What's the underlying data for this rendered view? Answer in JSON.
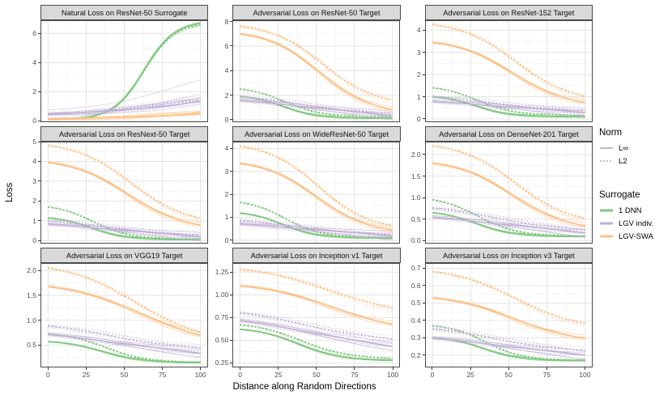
{
  "figure": {
    "y_title": "Loss",
    "x_title": "Distance along Random Directions"
  },
  "colors": {
    "green": "#7FC97F",
    "purple": "#BEAED4",
    "orange": "#FDC086",
    "norm_key": "#888888",
    "grid_major": "#E4E4E4",
    "grid_minor": "#F2F2F2",
    "panel_border": "#4a4a4a",
    "strip_bg": "#D9D9D9",
    "axis_text": "#4D4D4D"
  },
  "legend": {
    "norm": {
      "title": "Norm",
      "items": [
        {
          "label": "L∞",
          "dashed": false
        },
        {
          "label": "L2",
          "dashed": true
        }
      ]
    },
    "surrogate": {
      "title": "Surrogate",
      "items": [
        {
          "label": "1 DNN",
          "color": "green"
        },
        {
          "label": "LGV indiv.",
          "color": "purple"
        },
        {
          "label": "LGV-SWA",
          "color": "orange"
        }
      ]
    }
  },
  "chart_data": {
    "type": "line",
    "x_label": "Distance along Random Directions",
    "y_label": "Loss",
    "x_range": [
      0,
      100
    ],
    "x_ticks": [
      {
        "label": "0",
        "v": 0
      },
      {
        "label": "25",
        "v": 25
      },
      {
        "label": "50",
        "v": 50
      },
      {
        "label": "75",
        "v": 75
      },
      {
        "label": "100",
        "v": 100
      }
    ],
    "panels": [
      {
        "title": "Natural Loss on ResNet-50 Surrogate",
        "ylim": [
          -0.1,
          6.9
        ],
        "yticks": [
          {
            "label": "0",
            "v": 0
          },
          {
            "label": "2",
            "v": 2
          },
          {
            "label": "4",
            "v": 4
          },
          {
            "label": "6",
            "v": 6
          }
        ],
        "series": [
          {
            "s": "1 DNN",
            "n": "L2",
            "c": "green",
            "y0": 0.1,
            "y1": 6.55,
            "m": 0.63,
            "k": 0.1
          },
          {
            "s": "1 DNN",
            "n": "L∞",
            "c": "green",
            "y0": 0.1,
            "y1": 6.7,
            "m": 0.63,
            "k": 0.1
          },
          {
            "s": "LGV indiv.",
            "n": "L∞",
            "c": "purple",
            "y0": 0.75,
            "y1": 2.8,
            "m": 0.8,
            "k": 0.25,
            "r": 1,
            "w": 0.8,
            "o": 0.55
          },
          {
            "s": "LGV indiv.",
            "n": "L∞",
            "c": "purple",
            "y0": 0.2,
            "y1": 1.85,
            "m": 0.85,
            "k": 0.3,
            "r": 1,
            "w": 0.8,
            "o": 0.45
          },
          {
            "s": "LGV indiv.",
            "n": "L2",
            "c": "purple",
            "y0": 0.5,
            "y1": 1.5,
            "m": 0.9,
            "k": 0.3
          },
          {
            "s": "LGV indiv.",
            "n": "L∞",
            "c": "purple",
            "y0": 0.45,
            "y1": 1.4,
            "m": 0.9,
            "k": 0.3
          },
          {
            "s": "LGV-SWA",
            "n": "L2",
            "c": "orange",
            "y0": 0.12,
            "y1": 0.5,
            "m": 0.9,
            "k": 0.3
          },
          {
            "s": "LGV-SWA",
            "n": "L∞",
            "c": "orange",
            "y0": 0.12,
            "y1": 0.55,
            "m": 0.9,
            "k": 0.3
          }
        ]
      },
      {
        "title": "Adversarial Loss on ResNet-50 Target",
        "ylim": [
          -0.2,
          8.1
        ],
        "yticks": [
          {
            "label": "0",
            "v": 0
          },
          {
            "label": "2",
            "v": 2
          },
          {
            "label": "4",
            "v": 4
          },
          {
            "label": "6",
            "v": 6
          },
          {
            "label": "8",
            "v": 8
          }
        ],
        "series": [
          {
            "s": "1 DNN",
            "n": "L2",
            "c": "green",
            "y0": 2.5,
            "y1": 0.22,
            "m": 0.3,
            "k": 0.12
          },
          {
            "s": "1 DNN",
            "n": "L∞",
            "c": "green",
            "y0": 1.9,
            "y1": 0.13,
            "m": 0.28,
            "k": 0.11
          },
          {
            "s": "LGV indiv.",
            "n": "L2",
            "c": "purple",
            "y0": 1.85,
            "y1": 0.42,
            "m": 0.5,
            "k": 0.3
          },
          {
            "s": "LGV indiv.",
            "n": "L∞",
            "c": "purple",
            "y0": 1.6,
            "y1": 0.33,
            "m": 0.5,
            "k": 0.3
          },
          {
            "s": "LGV-SWA",
            "n": "L2",
            "c": "orange",
            "y0": 7.6,
            "y1": 1.55,
            "m": 0.55,
            "k": 0.17
          },
          {
            "s": "LGV-SWA",
            "n": "L∞",
            "c": "orange",
            "y0": 7.0,
            "y1": 0.85,
            "m": 0.52,
            "k": 0.17
          }
        ]
      },
      {
        "title": "Adversarial Loss on ResNet-152 Target",
        "ylim": [
          -0.15,
          4.45
        ],
        "yticks": [
          {
            "label": "0",
            "v": 0
          },
          {
            "label": "1",
            "v": 1
          },
          {
            "label": "2",
            "v": 2
          },
          {
            "label": "3",
            "v": 3
          },
          {
            "label": "4",
            "v": 4
          }
        ],
        "series": [
          {
            "s": "1 DNN",
            "n": "L2",
            "c": "green",
            "y0": 1.4,
            "y1": 0.15,
            "m": 0.3,
            "k": 0.12
          },
          {
            "s": "1 DNN",
            "n": "L∞",
            "c": "green",
            "y0": 1.0,
            "y1": 0.1,
            "m": 0.28,
            "k": 0.11
          },
          {
            "s": "LGV indiv.",
            "n": "L2",
            "c": "purple",
            "y0": 1.0,
            "y1": 0.32,
            "m": 0.5,
            "k": 0.3
          },
          {
            "s": "LGV indiv.",
            "n": "L∞",
            "c": "purple",
            "y0": 0.8,
            "y1": 0.28,
            "m": 0.5,
            "k": 0.3
          },
          {
            "s": "LGV-SWA",
            "n": "L2",
            "c": "orange",
            "y0": 4.25,
            "y1": 1.0,
            "m": 0.55,
            "k": 0.18
          },
          {
            "s": "LGV-SWA",
            "n": "L∞",
            "c": "orange",
            "y0": 3.45,
            "y1": 0.75,
            "m": 0.52,
            "k": 0.18
          }
        ]
      },
      {
        "title": "Adversarial Loss on ResNext-50 Target",
        "ylim": [
          -0.15,
          5.0
        ],
        "yticks": [
          {
            "label": "0",
            "v": 0
          },
          {
            "label": "1",
            "v": 1
          },
          {
            "label": "2",
            "v": 2
          },
          {
            "label": "3",
            "v": 3
          },
          {
            "label": "4",
            "v": 4
          },
          {
            "label": "5",
            "v": 5
          }
        ],
        "series": [
          {
            "s": "1 DNN",
            "n": "L2",
            "c": "green",
            "y0": 1.7,
            "y1": 0.07,
            "m": 0.3,
            "k": 0.12
          },
          {
            "s": "1 DNN",
            "n": "L∞",
            "c": "green",
            "y0": 1.15,
            "y1": 0.06,
            "m": 0.28,
            "k": 0.11
          },
          {
            "s": "LGV indiv.",
            "n": "L2",
            "c": "purple",
            "y0": 1.0,
            "y1": 0.22,
            "m": 0.5,
            "k": 0.3
          },
          {
            "s": "LGV indiv.",
            "n": "L∞",
            "c": "purple",
            "y0": 0.85,
            "y1": 0.18,
            "m": 0.5,
            "k": 0.3
          },
          {
            "s": "LGV-SWA",
            "n": "L2",
            "c": "orange",
            "y0": 4.8,
            "y1": 1.1,
            "m": 0.55,
            "k": 0.18
          },
          {
            "s": "LGV-SWA",
            "n": "L∞",
            "c": "orange",
            "y0": 3.95,
            "y1": 0.8,
            "m": 0.52,
            "k": 0.18
          }
        ]
      },
      {
        "title": "Adversarial Loss on WideResNet-50 Target",
        "ylim": [
          -0.15,
          4.3
        ],
        "yticks": [
          {
            "label": "0",
            "v": 0
          },
          {
            "label": "1",
            "v": 1
          },
          {
            "label": "2",
            "v": 2
          },
          {
            "label": "3",
            "v": 3
          },
          {
            "label": "4",
            "v": 4
          }
        ],
        "series": [
          {
            "s": "1 DNN",
            "n": "L2",
            "c": "green",
            "y0": 1.65,
            "y1": 0.1,
            "m": 0.3,
            "k": 0.12
          },
          {
            "s": "1 DNN",
            "n": "L∞",
            "c": "green",
            "y0": 1.18,
            "y1": 0.1,
            "m": 0.28,
            "k": 0.11
          },
          {
            "s": "LGV indiv.",
            "n": "L2",
            "c": "purple",
            "y0": 0.85,
            "y1": 0.2,
            "m": 0.5,
            "k": 0.3
          },
          {
            "s": "LGV indiv.",
            "n": "L∞",
            "c": "purple",
            "y0": 0.72,
            "y1": 0.18,
            "m": 0.5,
            "k": 0.3
          },
          {
            "s": "LGV-SWA",
            "n": "L2",
            "c": "orange",
            "y0": 4.1,
            "y1": 0.6,
            "m": 0.52,
            "k": 0.17
          },
          {
            "s": "LGV-SWA",
            "n": "L∞",
            "c": "orange",
            "y0": 3.35,
            "y1": 0.45,
            "m": 0.5,
            "k": 0.17
          }
        ]
      },
      {
        "title": "Adversarial Loss on DenseNet-201 Target",
        "ylim": [
          -0.07,
          2.3
        ],
        "yticks": [
          {
            "label": "0.0",
            "v": 0
          },
          {
            "label": "0.5",
            "v": 0.5
          },
          {
            "label": "1.0",
            "v": 1
          },
          {
            "label": "1.5",
            "v": 1.5
          },
          {
            "label": "2.0",
            "v": 2
          }
        ],
        "series": [
          {
            "s": "1 DNN",
            "n": "L2",
            "c": "green",
            "y0": 0.95,
            "y1": 0.1,
            "m": 0.3,
            "k": 0.13
          },
          {
            "s": "1 DNN",
            "n": "L∞",
            "c": "green",
            "y0": 0.65,
            "y1": 0.1,
            "m": 0.28,
            "k": 0.12
          },
          {
            "s": "LGV indiv.",
            "n": "L2",
            "c": "purple",
            "y0": 0.75,
            "y1": 0.22,
            "m": 0.5,
            "k": 0.3
          },
          {
            "s": "LGV indiv.",
            "n": "L∞",
            "c": "purple",
            "y0": 0.55,
            "y1": 0.18,
            "m": 0.5,
            "k": 0.3
          },
          {
            "s": "LGV-SWA",
            "n": "L2",
            "c": "orange",
            "y0": 2.2,
            "y1": 0.5,
            "m": 0.55,
            "k": 0.18
          },
          {
            "s": "LGV-SWA",
            "n": "L∞",
            "c": "orange",
            "y0": 1.8,
            "y1": 0.35,
            "m": 0.52,
            "k": 0.18
          }
        ]
      },
      {
        "title": "Adversarial Loss on VGG19 Target",
        "ylim": [
          0.05,
          2.15
        ],
        "yticks": [
          {
            "label": "0.5",
            "v": 0.5
          },
          {
            "label": "1.0",
            "v": 1
          },
          {
            "label": "1.5",
            "v": 1.5
          },
          {
            "label": "2.0",
            "v": 2
          }
        ],
        "series": [
          {
            "s": "1 DNN",
            "n": "L2",
            "c": "green",
            "y0": 0.72,
            "y1": 0.15,
            "m": 0.38,
            "k": 0.13
          },
          {
            "s": "1 DNN",
            "n": "L∞",
            "c": "green",
            "y0": 0.57,
            "y1": 0.15,
            "m": 0.35,
            "k": 0.13
          },
          {
            "s": "LGV indiv.",
            "n": "L2",
            "c": "purple",
            "y0": 0.88,
            "y1": 0.42,
            "m": 0.5,
            "k": 0.3
          },
          {
            "s": "LGV indiv.",
            "n": "L∞",
            "c": "purple",
            "y0": 0.72,
            "y1": 0.33,
            "m": 0.5,
            "k": 0.3
          },
          {
            "s": "LGV-SWA",
            "n": "L2",
            "c": "orange",
            "y0": 2.05,
            "y1": 0.75,
            "m": 0.58,
            "k": 0.22
          },
          {
            "s": "LGV-SWA",
            "n": "L∞",
            "c": "orange",
            "y0": 1.68,
            "y1": 0.7,
            "m": 0.6,
            "k": 0.24
          }
        ]
      },
      {
        "title": "Adversarial Loss on Inception v1 Target",
        "ylim": [
          0.2,
          1.35
        ],
        "yticks": [
          {
            "label": "0.25",
            "v": 0.25
          },
          {
            "label": "0.50",
            "v": 0.5
          },
          {
            "label": "0.75",
            "v": 0.75
          },
          {
            "label": "1.00",
            "v": 1
          },
          {
            "label": "1.25",
            "v": 1.25
          }
        ],
        "series": [
          {
            "s": "1 DNN",
            "n": "L2",
            "c": "green",
            "y0": 0.67,
            "y1": 0.3,
            "m": 0.4,
            "k": 0.15
          },
          {
            "s": "1 DNN",
            "n": "L∞",
            "c": "green",
            "y0": 0.62,
            "y1": 0.28,
            "m": 0.38,
            "k": 0.14
          },
          {
            "s": "LGV indiv.",
            "n": "L2",
            "c": "purple",
            "y0": 0.8,
            "y1": 0.5,
            "m": 0.5,
            "k": 0.3
          },
          {
            "s": "LGV indiv.",
            "n": "L∞",
            "c": "purple",
            "y0": 0.72,
            "y1": 0.43,
            "m": 0.5,
            "k": 0.3
          },
          {
            "s": "LGV-SWA",
            "n": "L2",
            "c": "orange",
            "y0": 1.28,
            "y1": 0.85,
            "m": 0.6,
            "k": 0.24
          },
          {
            "s": "LGV-SWA",
            "n": "L∞",
            "c": "orange",
            "y0": 1.1,
            "y1": 0.68,
            "m": 0.58,
            "k": 0.22
          }
        ]
      },
      {
        "title": "Adversarial Loss on Inception v3 Target",
        "ylim": [
          0.13,
          0.73
        ],
        "yticks": [
          {
            "label": "0.2",
            "v": 0.2
          },
          {
            "label": "0.3",
            "v": 0.3
          },
          {
            "label": "0.4",
            "v": 0.4
          },
          {
            "label": "0.5",
            "v": 0.5
          },
          {
            "label": "0.6",
            "v": 0.6
          },
          {
            "label": "0.7",
            "v": 0.7
          }
        ],
        "series": [
          {
            "s": "1 DNN",
            "n": "L2",
            "c": "green",
            "y0": 0.37,
            "y1": 0.17,
            "m": 0.35,
            "k": 0.12
          },
          {
            "s": "1 DNN",
            "n": "L∞",
            "c": "green",
            "y0": 0.3,
            "y1": 0.17,
            "m": 0.33,
            "k": 0.12
          },
          {
            "s": "LGV indiv.",
            "n": "L2",
            "c": "purple",
            "y0": 0.35,
            "y1": 0.22,
            "m": 0.5,
            "k": 0.28
          },
          {
            "s": "LGV indiv.",
            "n": "L∞",
            "c": "purple",
            "y0": 0.3,
            "y1": 0.2,
            "m": 0.5,
            "k": 0.28
          },
          {
            "s": "LGV-SWA",
            "n": "L2",
            "c": "orange",
            "y0": 0.68,
            "y1": 0.38,
            "m": 0.55,
            "k": 0.2
          },
          {
            "s": "LGV-SWA",
            "n": "L∞",
            "c": "orange",
            "y0": 0.53,
            "y1": 0.3,
            "m": 0.52,
            "k": 0.2
          }
        ]
      }
    ]
  }
}
